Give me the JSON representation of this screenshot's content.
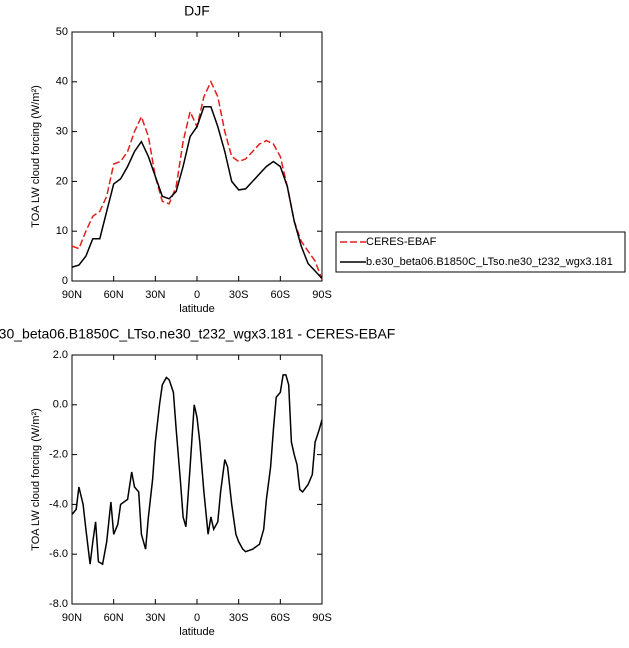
{
  "chart_data": [
    {
      "type": "line",
      "title": "DJF",
      "xlabel": "latitude",
      "ylabel": "TOA LW cloud forcing (W/m²)",
      "x": [
        90,
        85,
        80,
        75,
        70,
        65,
        60,
        55,
        50,
        45,
        40,
        35,
        30,
        25,
        20,
        15,
        10,
        5,
        0,
        -5,
        -10,
        -15,
        -20,
        -25,
        -30,
        -35,
        -40,
        -45,
        -50,
        -55,
        -60,
        -65,
        -70,
        -75,
        -80,
        -85,
        -90
      ],
      "xlim": [
        90,
        -90
      ],
      "xticks": [
        {
          "value": 90,
          "label": "90N"
        },
        {
          "value": 60,
          "label": "60N"
        },
        {
          "value": 30,
          "label": "30N"
        },
        0,
        {
          "value": -30,
          "label": "30S"
        },
        {
          "value": -60,
          "label": "60S"
        },
        {
          "value": -90,
          "label": "90S"
        }
      ],
      "ylim": [
        0,
        50
      ],
      "yticks": [
        0,
        10,
        20,
        30,
        40,
        50
      ],
      "legend": "outside-right",
      "series": [
        {
          "name": "CERES-EBAF",
          "color": "#e0201b",
          "dash": true,
          "values": [
            7,
            6.5,
            10,
            13,
            14,
            17,
            23.5,
            24,
            26,
            30,
            33,
            29,
            21,
            16,
            15.5,
            19,
            28,
            34,
            31,
            37,
            40,
            37,
            30,
            25,
            24,
            24.5,
            26,
            27.5,
            28.2,
            27.5,
            25,
            19,
            12,
            8,
            6,
            4,
            0.3
          ]
        },
        {
          "name": "b.e30_beta06.B1850C_LTso.ne30_t232_wgx3.181",
          "color": "#000000",
          "dash": false,
          "values": [
            2.8,
            3.2,
            5,
            8.5,
            8.5,
            14,
            19.5,
            20.5,
            23,
            26,
            28,
            25,
            21,
            17,
            16.5,
            18,
            23,
            29,
            31,
            35,
            35,
            31,
            26,
            20,
            18.3,
            18.5,
            20,
            21.5,
            23,
            24,
            23,
            19,
            12,
            7,
            3.5,
            2,
            0.5
          ]
        }
      ]
    },
    {
      "type": "line",
      "title": "30_beta06.B1850C_LTso.ne30_t232_wgx3.181 - CERES-EBAF",
      "xlabel": "latitude",
      "ylabel": "TOA LW cloud forcing (W/m²)",
      "x": [
        90,
        87,
        85,
        82,
        80,
        77,
        75,
        73,
        71,
        68,
        65,
        62,
        60,
        57,
        55,
        50,
        47,
        45,
        42,
        40,
        37,
        35,
        32,
        30,
        27,
        25,
        22,
        20,
        17,
        15,
        12,
        10,
        8,
        5,
        2,
        0,
        -2,
        -5,
        -8,
        -10,
        -12,
        -15,
        -17,
        -20,
        -22,
        -25,
        -28,
        -30,
        -33,
        -35,
        -40,
        -45,
        -48,
        -50,
        -53,
        -55,
        -57,
        -60,
        -62,
        -64,
        -66,
        -68,
        -70,
        -72,
        -74,
        -76,
        -80,
        -83,
        -85,
        -88,
        -90
      ],
      "xlim": [
        90,
        -90
      ],
      "xticks": [
        {
          "value": 90,
          "label": "90N"
        },
        {
          "value": 60,
          "label": "60N"
        },
        {
          "value": 30,
          "label": "30N"
        },
        0,
        {
          "value": -30,
          "label": "30S"
        },
        {
          "value": -60,
          "label": "60S"
        },
        {
          "value": -90,
          "label": "90S"
        }
      ],
      "ylim": [
        -8,
        2
      ],
      "yticks": [
        {
          "value": -8,
          "label": "-8.0"
        },
        {
          "value": -6,
          "label": "-6.0"
        },
        {
          "value": -4,
          "label": "-4.0"
        },
        {
          "value": -2,
          "label": "-2.0"
        },
        {
          "value": 0,
          "label": "0.0"
        },
        {
          "value": 2,
          "label": "2.0"
        }
      ],
      "series": [
        {
          "color": "#000000",
          "dash": false,
          "values": [
            -4.4,
            -4.2,
            -3.3,
            -4,
            -5,
            -6.4,
            -5.5,
            -4.7,
            -6.3,
            -6.4,
            -5.5,
            -3.9,
            -5.2,
            -4.8,
            -4,
            -3.8,
            -2.7,
            -3.3,
            -3.5,
            -5.2,
            -5.8,
            -4.5,
            -3,
            -1.5,
            0,
            0.8,
            1.1,
            1,
            0.5,
            -1,
            -3,
            -4.5,
            -4.9,
            -2.5,
            0,
            -0.5,
            -1.5,
            -3.5,
            -5.2,
            -4.5,
            -5,
            -4.7,
            -3.5,
            -2.2,
            -2.5,
            -4,
            -5.2,
            -5.5,
            -5.8,
            -5.9,
            -5.8,
            -5.6,
            -5,
            -3.8,
            -2.5,
            -1,
            0.3,
            0.5,
            1.2,
            1.2,
            0.8,
            -1.5,
            -2,
            -2.4,
            -3.4,
            -3.5,
            -3.2,
            -2.8,
            -1.5,
            -1,
            -0.6
          ]
        }
      ]
    }
  ]
}
